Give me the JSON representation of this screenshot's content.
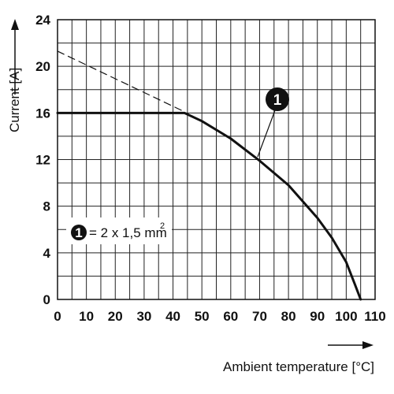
{
  "chart_data": {
    "type": "line",
    "xlabel": "Ambient temperature [°C]",
    "ylabel": "Current [A]",
    "xlim": [
      0,
      110
    ],
    "ylim": [
      0,
      24
    ],
    "x_ticks": [
      0,
      10,
      20,
      30,
      40,
      50,
      60,
      70,
      80,
      90,
      100,
      110
    ],
    "y_ticks": [
      0,
      4,
      8,
      12,
      16,
      20,
      24
    ],
    "x_tick_labels": [
      "0",
      "10",
      "20",
      "30",
      "40",
      "50",
      "60",
      "70",
      "80",
      "90",
      "100",
      "110"
    ],
    "y_tick_labels": [
      "0",
      "4",
      "8",
      "12",
      "16",
      "20",
      "24"
    ],
    "grid": true,
    "grid_minor_step_x": 5,
    "grid_minor_step_y": 2,
    "series": [
      {
        "style": "solid",
        "x": [
          0,
          44,
          50,
          60,
          70,
          80,
          90,
          95,
          100,
          103,
          105
        ],
        "y": [
          16,
          16,
          15.3,
          13.8,
          11.9,
          9.8,
          7.0,
          5.3,
          3.2,
          1.3,
          0
        ]
      },
      {
        "style": "dashed",
        "x": [
          0,
          44
        ],
        "y": [
          21.3,
          16.1
        ]
      }
    ],
    "annotations": [
      {
        "marker": "1",
        "points_to": [
          70,
          12
        ]
      }
    ],
    "legend": {
      "marker": "1",
      "text": "= 2 x 1,5 mm",
      "superscript": "2"
    }
  }
}
